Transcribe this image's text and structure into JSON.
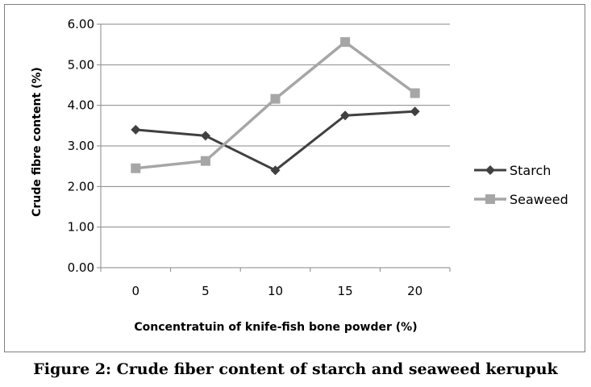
{
  "caption": "Figure 2:  Crude fiber content of starch and seaweed kerupuk",
  "colors": {
    "starch": "#404040",
    "seaweed": "#a6a6a6",
    "grid": "#878787",
    "axis": "#878787"
  },
  "chart_data": {
    "type": "line",
    "categories": [
      "0",
      "5",
      "10",
      "15",
      "20"
    ],
    "series": [
      {
        "name": "Starch",
        "marker": "diamond",
        "values": [
          3.4,
          3.25,
          2.4,
          3.75,
          3.85
        ]
      },
      {
        "name": "Seaweed",
        "marker": "square",
        "values": [
          2.45,
          2.63,
          4.16,
          5.56,
          4.3
        ]
      }
    ],
    "xlabel": "Concentratuin of knife-fish bone powder (%)",
    "ylabel": "Crude fibre content (%)",
    "ylim": [
      0,
      6
    ],
    "yticks": [
      "0.00",
      "1.00",
      "2.00",
      "3.00",
      "4.00",
      "5.00",
      "6.00"
    ],
    "grid": true,
    "legend": "right"
  }
}
